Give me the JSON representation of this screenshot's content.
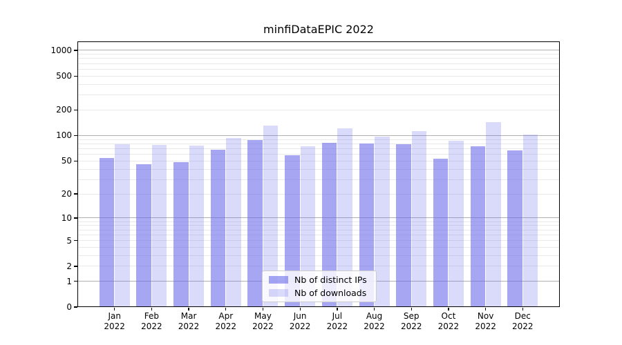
{
  "title": "minfiDataEPIC 2022",
  "legend": {
    "items": [
      {
        "label": "Nb of distinct IPs",
        "color": "rgba(102,102,235,0.58)"
      },
      {
        "label": "Nb of downloads",
        "color": "rgba(102,102,235,0.24)"
      }
    ]
  },
  "colors": {
    "bar_distinct_ips": "rgba(102,102,235,0.58)",
    "bar_downloads": "rgba(102,102,235,0.24)",
    "grid_major": "#b0b0b0",
    "grid_minor": "#e9e9e9",
    "axis": "#000000",
    "background": "#ffffff"
  },
  "chart_data": {
    "type": "bar",
    "title": "minfiDataEPIC 2022",
    "categories": [
      "Jan 2022",
      "Feb 2022",
      "Mar 2022",
      "Apr 2022",
      "May 2022",
      "Jun 2022",
      "Jul 2022",
      "Aug 2022",
      "Sep 2022",
      "Oct 2022",
      "Nov 2022",
      "Dec 2022"
    ],
    "series": [
      {
        "name": "Nb of distinct IPs",
        "values": [
          54,
          46,
          48,
          68,
          89,
          58,
          82,
          80,
          79,
          53,
          75,
          67
        ]
      },
      {
        "name": "Nb of downloads",
        "values": [
          79,
          77,
          76,
          93,
          132,
          74,
          121,
          98,
          112,
          87,
          143,
          102
        ]
      }
    ],
    "xlabel": "",
    "ylabel": "",
    "yscale": "symlog (position ~ log10(1+y))",
    "ylim": [
      0,
      1300
    ],
    "y_ticks": [
      0,
      1,
      2,
      5,
      10,
      20,
      50,
      100,
      200,
      500,
      1000
    ],
    "y_major_gridlines": [
      1,
      10,
      100,
      1000
    ],
    "y_minor_gridlines": [
      2,
      3,
      4,
      5,
      6,
      7,
      8,
      9,
      20,
      30,
      40,
      50,
      60,
      70,
      80,
      90,
      200,
      300,
      400,
      500,
      600,
      700,
      800,
      900
    ],
    "grid": true,
    "legend_position": "lower center"
  }
}
